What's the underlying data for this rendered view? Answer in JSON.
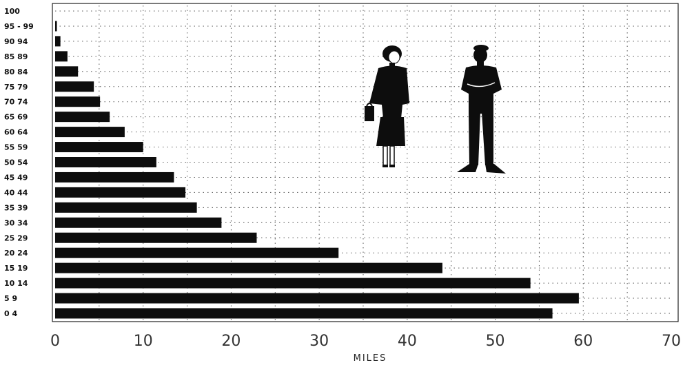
{
  "chart_data": {
    "type": "bar",
    "orientation": "horizontal",
    "categories": [
      "0   4",
      "5   9",
      "10   14",
      "15   19",
      "20   24",
      "25   29",
      "30   34",
      "35   39",
      "40   44",
      "45   49",
      "50   54",
      "55   59",
      "60   64",
      "65   69",
      "70   74",
      "75   79",
      "80   84",
      "85   89",
      "90   94",
      "95 - 99",
      "100"
    ],
    "values": [
      56.5,
      59.5,
      54,
      44,
      32.2,
      22.9,
      18.9,
      16.1,
      14.8,
      13.5,
      11.5,
      10,
      7.9,
      6.2,
      5.1,
      4.4,
      2.6,
      1.4,
      0.6,
      0.2,
      0
    ],
    "xlim": [
      0,
      70
    ],
    "xticks": [
      "0",
      "10",
      "20",
      "30",
      "40",
      "50",
      "60",
      "70"
    ],
    "xlabel": "MILES",
    "ylabel": "",
    "title": "",
    "grid": true
  },
  "figures": {
    "woman_icon": "woman-silhouette-icon",
    "man_icon": "man-silhouette-icon"
  },
  "colors": {
    "bar": "#0d0d0d",
    "grid": "#555555",
    "background": "#ffffff"
  }
}
